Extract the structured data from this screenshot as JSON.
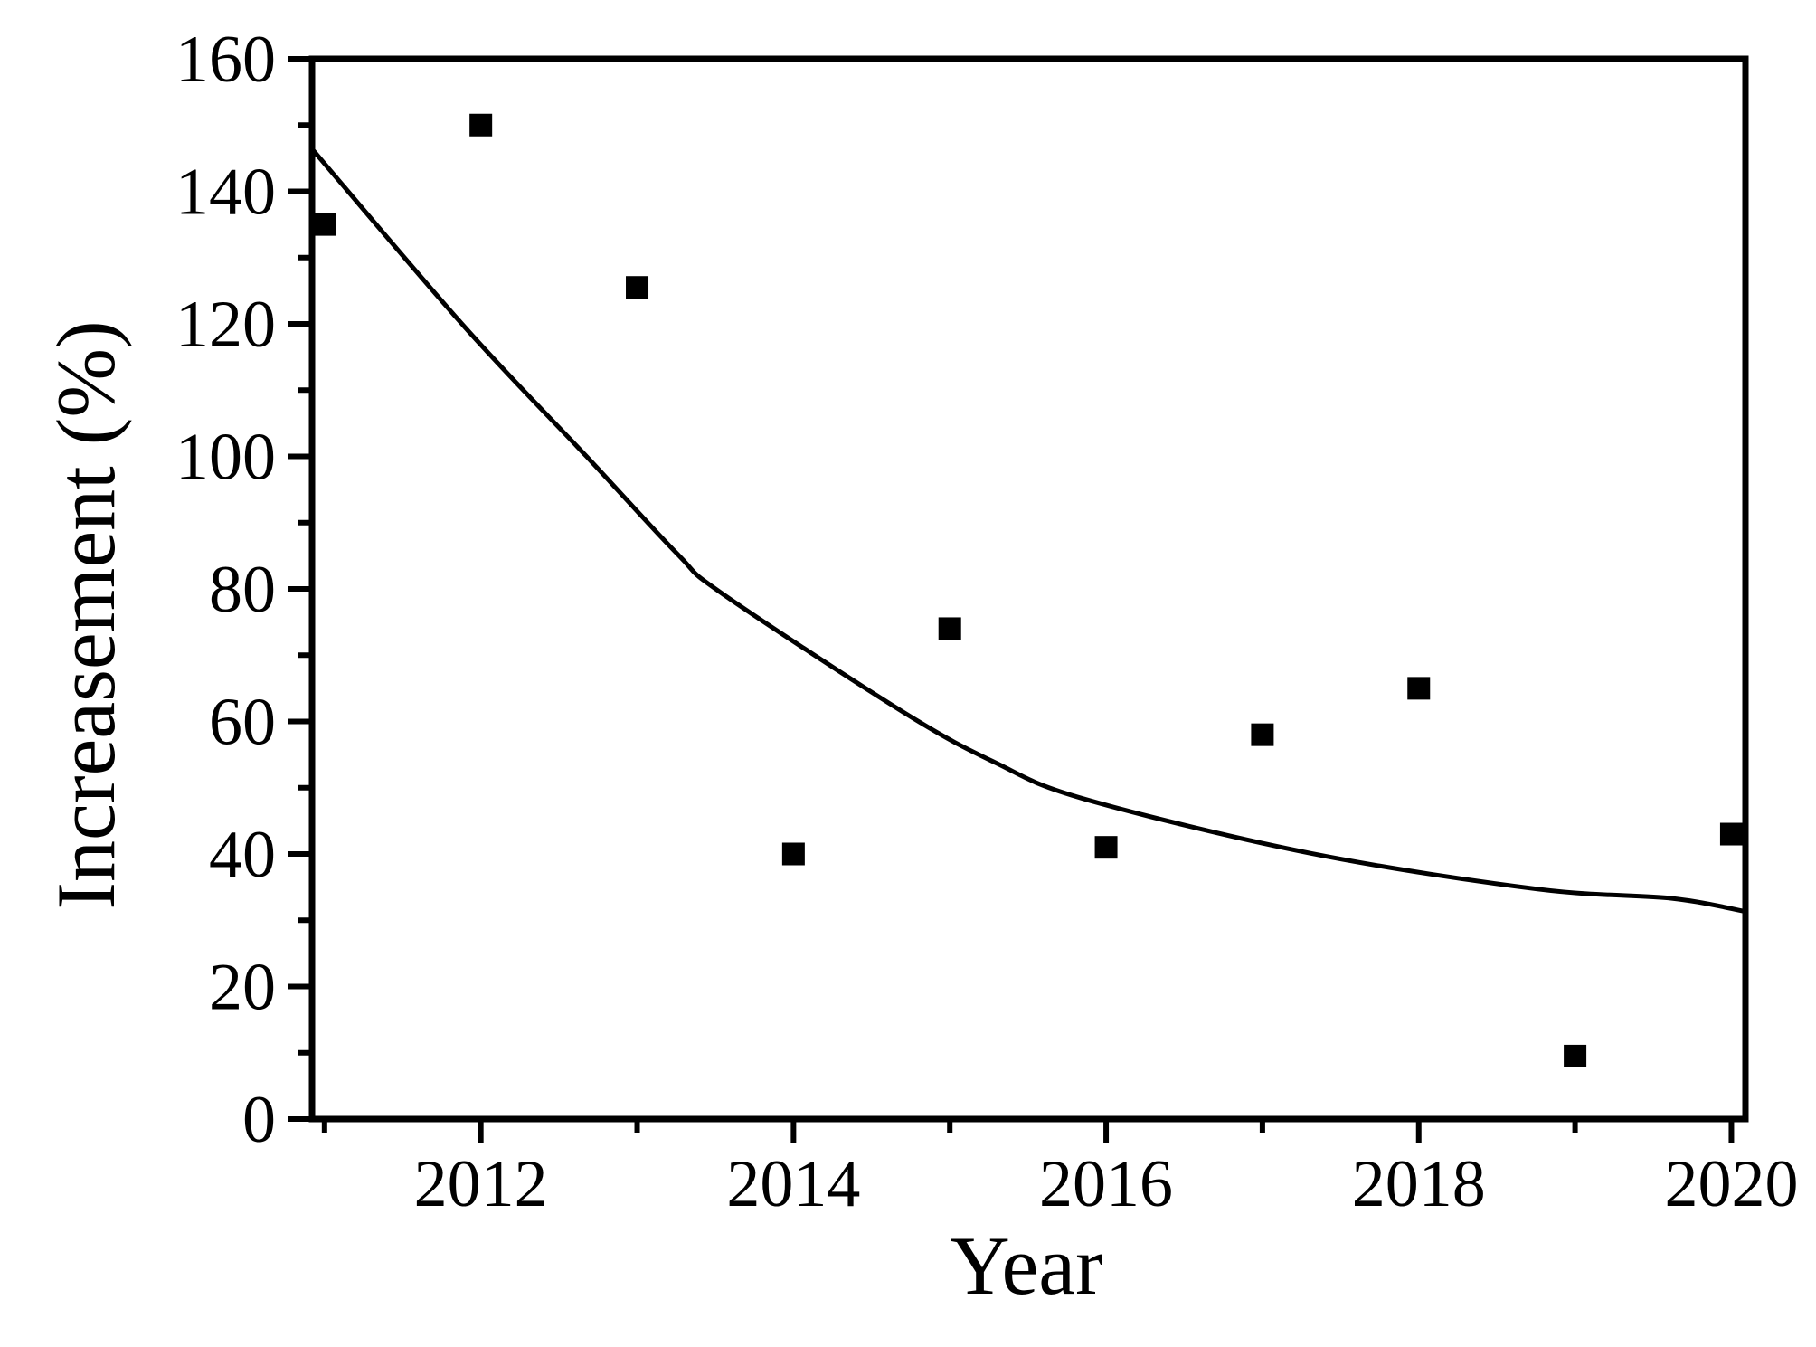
{
  "figure": {
    "background": "#ffffff",
    "ink_color": "#000000"
  },
  "chart_data": {
    "type": "scatter",
    "title": "",
    "xlabel": "Year",
    "ylabel": "Increasement (%)",
    "xlim": [
      2010.92,
      2020.09
    ],
    "ylim": [
      0,
      160
    ],
    "x_major_ticks": [
      2012,
      2014,
      2016,
      2018,
      2020
    ],
    "x_minor_ticks": [
      2011,
      2013,
      2015,
      2017,
      2019
    ],
    "y_major_ticks": [
      0,
      20,
      40,
      60,
      80,
      100,
      120,
      140,
      160
    ],
    "y_minor_ticks": [
      10,
      30,
      50,
      70,
      90,
      110,
      130,
      150
    ],
    "grid": false,
    "legend": false,
    "marker": "filled-square",
    "marker_color": "#000000",
    "line_color": "#000000",
    "series": [
      {
        "name": "observed-increasement",
        "x": [
          2011,
          2012,
          2013,
          2014,
          2015,
          2016,
          2017,
          2018,
          2019,
          2020
        ],
        "y": [
          135,
          150,
          125.5,
          40,
          74,
          41,
          58,
          65,
          9.5,
          43
        ]
      }
    ],
    "fit_curve": {
      "name": "exponential-decay-fit",
      "points": [
        [
          2010.92,
          146.4
        ],
        [
          2011.89,
          119.7
        ],
        [
          2012.68,
          99.9
        ],
        [
          2013.26,
          85.2
        ],
        [
          2013.55,
          79.2
        ],
        [
          2014.71,
          61.3
        ],
        [
          2015.29,
          53.8
        ],
        [
          2015.86,
          48.3
        ],
        [
          2017.31,
          40.1
        ],
        [
          2018.76,
          34.7
        ],
        [
          2019.62,
          33.3
        ],
        [
          2020.09,
          31.3
        ]
      ]
    }
  }
}
